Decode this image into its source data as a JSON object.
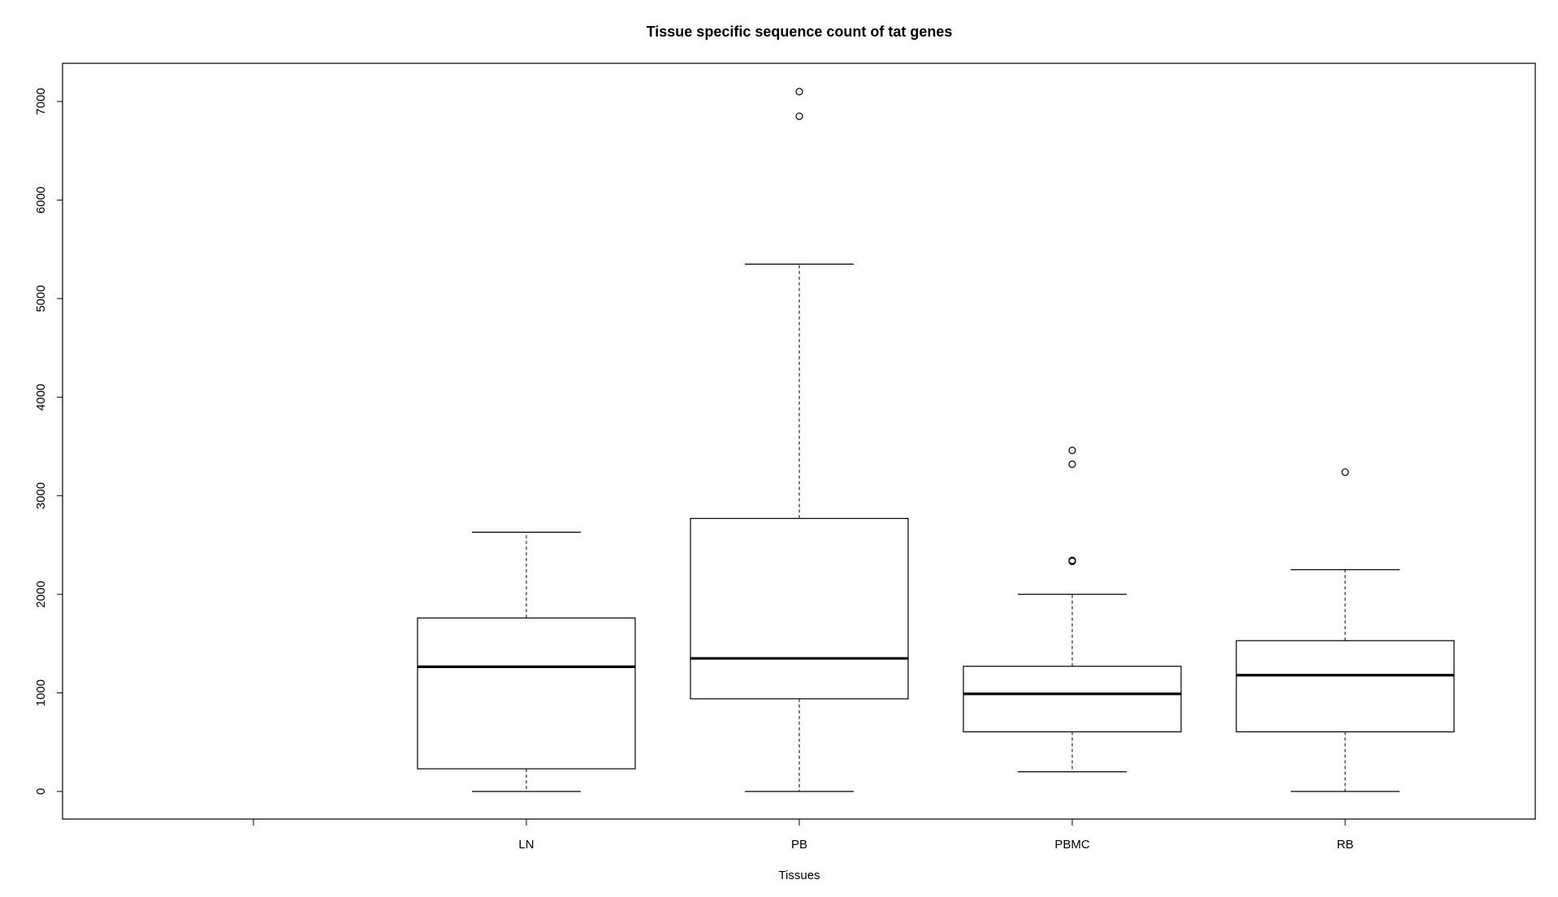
{
  "chart_data": {
    "type": "boxplot",
    "title": "Tissue specific sequence count of tat genes",
    "xlabel": "Tissues",
    "ylabel": "",
    "ylim": [
      -300,
      7400
    ],
    "y_ticks": [
      0,
      1000,
      2000,
      3000,
      4000,
      5000,
      6000,
      7000
    ],
    "categories": [
      "",
      "LN",
      "PB",
      "PBMC",
      "RB"
    ],
    "boxes": [
      {
        "category": "LN",
        "whisker_low": 0,
        "q1": 230,
        "median": 1265,
        "q3": 1760,
        "whisker_high": 2630,
        "outliers": []
      },
      {
        "category": "PB",
        "whisker_low": 0,
        "q1": 940,
        "median": 1350,
        "q3": 2770,
        "whisker_high": 5350,
        "outliers": [
          6850,
          7100
        ]
      },
      {
        "category": "PBMC",
        "whisker_low": 200,
        "q1": 605,
        "median": 990,
        "q3": 1270,
        "whisker_high": 2000,
        "outliers": [
          2335,
          2345,
          3320,
          3460
        ]
      },
      {
        "category": "RB",
        "whisker_low": 0,
        "q1": 605,
        "median": 1180,
        "q3": 1530,
        "whisker_high": 2250,
        "outliers": [
          3240
        ]
      }
    ],
    "grid": false,
    "legend": "none"
  },
  "colors": {
    "stroke": "#000000",
    "background": "#ffffff"
  }
}
